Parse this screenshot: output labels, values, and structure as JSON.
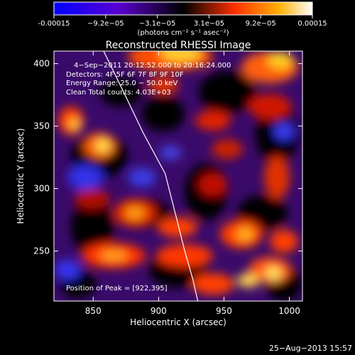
{
  "chart_data": {
    "type": "heatmap",
    "title": "Reconstructed RHESSI Image",
    "colorbar": {
      "ticks": [
        "-0.00015",
        "−9.2e−05",
        "−3.1e−05",
        "3.1e−05",
        "9.2e−05",
        "0.00015"
      ],
      "range": [
        -0.00015,
        0.00015
      ],
      "unit_label": "(photons cm⁻² s⁻¹ asec⁻²)",
      "colormap": [
        "#0000ff",
        "#5a00d0",
        "#000000",
        "#ff3000",
        "#ffb000",
        "#ffffff"
      ]
    },
    "annotations": [
      "4−Sep−2011 20:12:52.000 to 20:16:24.000",
      "Detectors: 4F 5F 6F 7F 8F 9F 10F",
      "Energy Range: 25.0 − 50.0 keV",
      "Clean     Total counts: 4.03E+03"
    ],
    "peak_label": "Position of Peak = [922,395]",
    "xlabel": "Heliocentric X (arcsec)",
    "ylabel": "Heliocentric Y (arcsec)",
    "xlim": [
      820,
      1010
    ],
    "ylim": [
      210,
      410
    ],
    "xticks": [
      850,
      900,
      950,
      1000
    ],
    "yticks": [
      250,
      300,
      350,
      400
    ],
    "limb_curve": [
      [
        858,
        410
      ],
      [
        872,
        380
      ],
      [
        888,
        345
      ],
      [
        905,
        312
      ],
      [
        914,
        275
      ],
      [
        920,
        250
      ],
      [
        926,
        228
      ],
      [
        930,
        210
      ]
    ],
    "timestamp": "25−Aug−2013 15:57"
  }
}
